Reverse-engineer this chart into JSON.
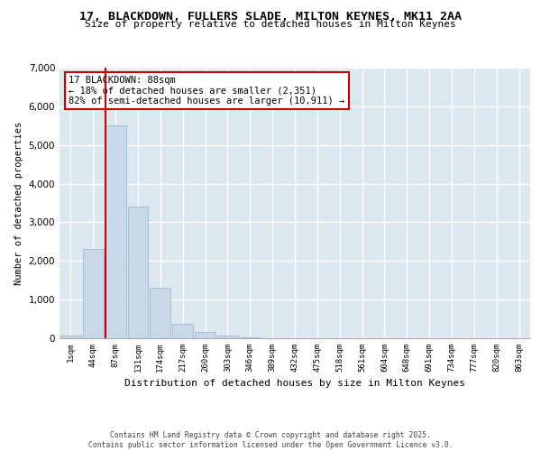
{
  "title_line1": "17, BLACKDOWN, FULLERS SLADE, MILTON KEYNES, MK11 2AA",
  "title_line2": "Size of property relative to detached houses in Milton Keynes",
  "xlabel": "Distribution of detached houses by size in Milton Keynes",
  "ylabel": "Number of detached properties",
  "bin_labels": [
    "1sqm",
    "44sqm",
    "87sqm",
    "131sqm",
    "174sqm",
    "217sqm",
    "260sqm",
    "303sqm",
    "346sqm",
    "389sqm",
    "432sqm",
    "475sqm",
    "518sqm",
    "561sqm",
    "604sqm",
    "648sqm",
    "691sqm",
    "734sqm",
    "777sqm",
    "820sqm",
    "863sqm"
  ],
  "bar_values": [
    60,
    2300,
    5500,
    3400,
    1300,
    370,
    175,
    75,
    25,
    8,
    3,
    1,
    0,
    0,
    0,
    0,
    0,
    0,
    0,
    0,
    0
  ],
  "bar_color": "#c8d8e8",
  "bar_edgecolor": "#9ab0c8",
  "vline_color": "#cc0000",
  "annotation_text": "17 BLACKDOWN: 88sqm\n← 18% of detached houses are smaller (2,351)\n82% of semi-detached houses are larger (10,911) →",
  "annotation_box_color": "#cc0000",
  "ylim": [
    0,
    7000
  ],
  "yticks": [
    0,
    1000,
    2000,
    3000,
    4000,
    5000,
    6000,
    7000
  ],
  "background_color": "#dce8f0",
  "grid_color": "#ffffff",
  "fig_background": "#ffffff",
  "footer_line1": "Contains HM Land Registry data © Crown copyright and database right 2025.",
  "footer_line2": "Contains public sector information licensed under the Open Government Licence v3.0."
}
